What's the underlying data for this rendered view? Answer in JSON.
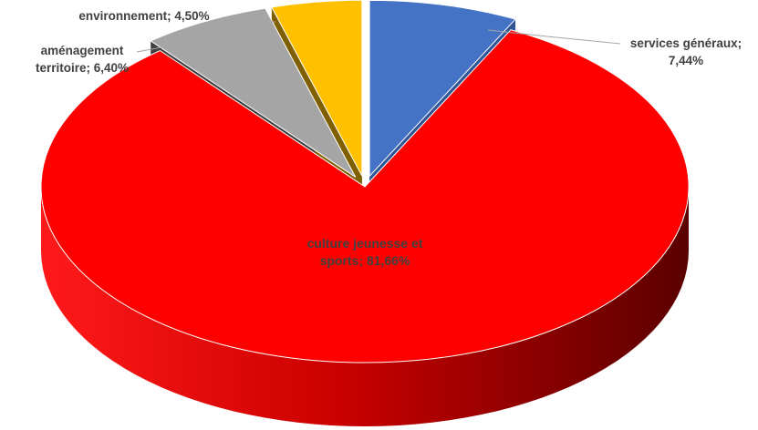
{
  "chart_data": {
    "type": "pie",
    "title": "",
    "slices": [
      {
        "category": "services généraux",
        "value": 7.44,
        "label_line1": "services généraux;",
        "label_line2": "7,44%",
        "color": "#4472C4",
        "side_color": "#2F5597",
        "exploded": true
      },
      {
        "category": "culture jeunesse et sports",
        "value": 81.66,
        "label_line1": "culture jeunesse et",
        "label_line2": "sports; 81,66%",
        "color": "#FF0000",
        "side_color": "#A00000",
        "exploded": false
      },
      {
        "category": "aménagement territoire",
        "value": 6.4,
        "label_line1": "aménagement",
        "label_line2": "territoire; 6,40%",
        "color": "#A5A5A5",
        "side_color": "#404040",
        "exploded": true
      },
      {
        "category": "environnement",
        "value": 4.5,
        "label_line1": "environnement; 4,50%",
        "label_line2": "",
        "color": "#FFC000",
        "side_color": "#7F5F00",
        "exploded": true
      }
    ],
    "legend": "none",
    "style": "3d-exploded-pie"
  }
}
